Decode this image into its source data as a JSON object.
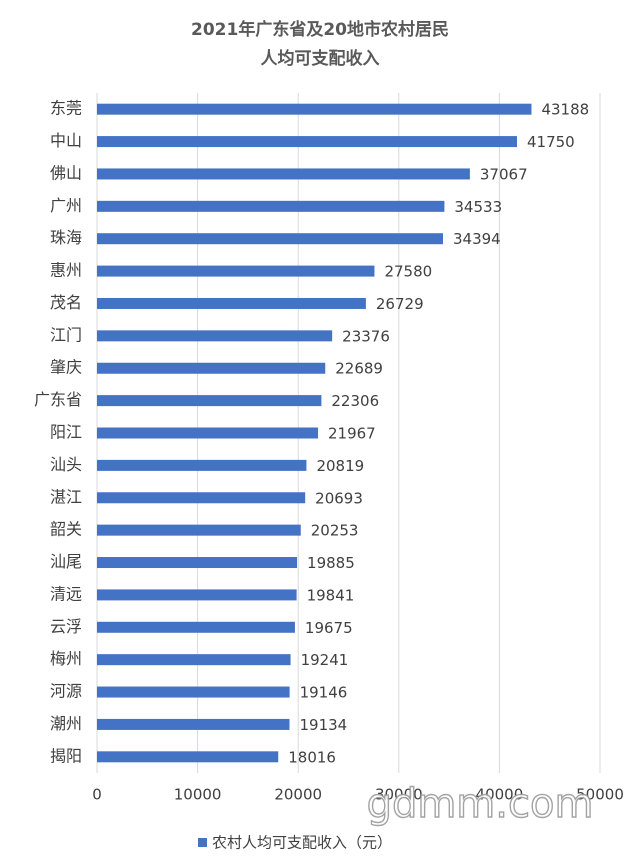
{
  "chart_data": {
    "type": "bar",
    "orientation": "horizontal",
    "title": [
      "2021年广东省及20地市农村居民",
      "人均可支配收入"
    ],
    "categories": [
      "东莞",
      "中山",
      "佛山",
      "广州",
      "珠海",
      "惠州",
      "茂名",
      "江门",
      "肇庆",
      "广东省",
      "阳江",
      "汕头",
      "湛江",
      "韶关",
      "汕尾",
      "清远",
      "云浮",
      "梅州",
      "河源",
      "潮州",
      "揭阳"
    ],
    "series": [
      {
        "name": "农村人均可支配收入（元）",
        "color": "#4472c4",
        "values": [
          43188,
          41750,
          37067,
          34533,
          34394,
          27580,
          26729,
          23376,
          22689,
          22306,
          21967,
          20819,
          20693,
          20253,
          19885,
          19841,
          19675,
          19241,
          19146,
          19134,
          18016
        ]
      }
    ],
    "xlim": [
      0,
      50000
    ],
    "xticks": [
      0,
      10000,
      20000,
      30000,
      40000,
      50000
    ],
    "grid": true,
    "legend": "bottom",
    "watermark": "gdmm.com"
  }
}
